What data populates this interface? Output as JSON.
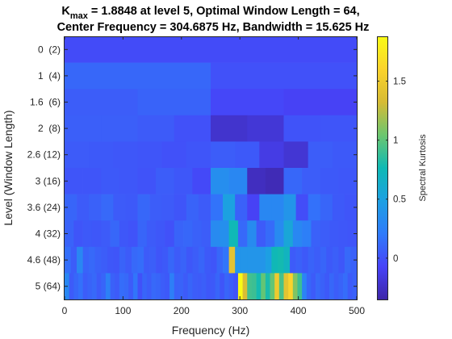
{
  "chart_data": {
    "type": "heatmap",
    "title": {
      "line1_prefix": "K",
      "line1_sub": "max",
      "line1_rest": " = 1.8848 at level 5, Optimal Window Length = 64,",
      "line2": "Center Frequency = 304.6875 Hz, Bandwidth = 15.625 Hz"
    },
    "xlabel": "Frequency (Hz)",
    "ylabel": "Level (Window Length)",
    "colorbar_label": "Spectral Kurtosis",
    "x_range": [
      0,
      500
    ],
    "x_ticks": [
      "0",
      "100",
      "200",
      "300",
      "400",
      "500"
    ],
    "colorbar_range": [
      -0.35,
      1.88
    ],
    "colorbar_ticks": [
      "0",
      "0.5",
      "1",
      "1.5"
    ],
    "colormap": [
      "#3e26a8",
      "#4743f8",
      "#2f7bfa",
      "#1da0e2",
      "#0fb9b4",
      "#6cc66f",
      "#d6bb35",
      "#fbd32c",
      "#f9fb15"
    ],
    "rows": [
      {
        "label": "0  (2)",
        "values": [
          -0.03
        ]
      },
      {
        "label": "1  (4)",
        "values": [
          0.11,
          0.0
        ]
      },
      {
        "label": "1.6  (6)",
        "values": [
          0.06,
          0.09,
          -0.05,
          -0.08
        ]
      },
      {
        "label": "2  (8)",
        "values": [
          0.07,
          0.07,
          0.05,
          0.0,
          -0.22,
          -0.19,
          0.01,
          0.02
        ]
      },
      {
        "label": "2.6 (12)",
        "values": [
          0.05,
          0.04,
          0.03,
          0.02,
          0.0,
          0.02,
          0.06,
          0.04,
          -0.14,
          -0.2,
          0.06,
          0.04
        ]
      },
      {
        "label": "3 (16)",
        "values": [
          0.02,
          0.02,
          0.04,
          0.03,
          0.01,
          0.06,
          0.03,
          -0.04,
          0.35,
          0.3,
          -0.27,
          -0.3,
          0.11,
          0.06,
          0.04,
          0.03
        ]
      },
      {
        "label": "3.6 (24)",
        "values": [
          0.1,
          0.05,
          0.08,
          0.12,
          0.05,
          0.04,
          0.11,
          0.06,
          0.05,
          0.02,
          0.09,
          0.05,
          0.17,
          0.5,
          0.08,
          -0.08,
          0.3,
          0.3,
          0.4,
          -0.02,
          0.16,
          0.1,
          0.04,
          0.02
        ]
      },
      {
        "label": "4 (32)",
        "values": [
          0.09,
          0.02,
          0.04,
          0.03,
          0.05,
          0.11,
          0.03,
          0.01,
          0.1,
          0.05,
          0.03,
          0.0,
          0.09,
          0.11,
          0.08,
          0.06,
          0.32,
          0.36,
          0.75,
          0.12,
          0.33,
          0.05,
          0.13,
          0.32,
          0.55,
          0.3,
          0.24,
          0.08,
          0.06,
          0.04,
          0.03,
          0.02
        ]
      },
      {
        "label": "4.6 (48)",
        "values": [
          0.15,
          0.06,
          0.3,
          0.09,
          0.12,
          0.08,
          0.06,
          0.03,
          0.02,
          0.09,
          0.05,
          0.12,
          0.14,
          0.05,
          0.07,
          0.02,
          0.04,
          0.11,
          0.05,
          0.09,
          0.03,
          0.06,
          0.1,
          0.04,
          0.02,
          0.11,
          0.18,
          1.42,
          0.4,
          0.4,
          0.4,
          0.4,
          0.4,
          0.48,
          0.75,
          0.78,
          0.7,
          0.05,
          0.08,
          0.04,
          0.09,
          0.06,
          0.1,
          0.04,
          0.07,
          0.03,
          0.12,
          0.08
        ]
      },
      {
        "label": "5 (64)",
        "values": [
          0.3,
          0.05,
          0.11,
          0.16,
          0.06,
          0.09,
          0.12,
          0.05,
          0.1,
          0.25,
          0.08,
          0.05,
          0.14,
          0.12,
          0.05,
          0.18,
          0.0,
          0.1,
          0.06,
          0.12,
          0.1,
          0.06,
          0.04,
          0.24,
          0.08,
          0.09,
          0.05,
          0.1,
          0.06,
          0.05,
          0.07,
          0.03,
          0.04,
          0.1,
          0.02,
          0.1,
          0.06,
          0.01,
          1.88,
          1.35,
          0.92,
          0.9,
          0.78,
          1.02,
          0.8,
          1.02,
          1.5,
          0.94,
          1.42,
          1.6,
          1.1,
          0.9,
          0.27,
          0.1,
          0.05,
          0.12,
          0.08,
          0.04,
          0.11,
          0.06,
          0.09,
          0.14,
          0.05,
          0.08
        ]
      }
    ]
  }
}
